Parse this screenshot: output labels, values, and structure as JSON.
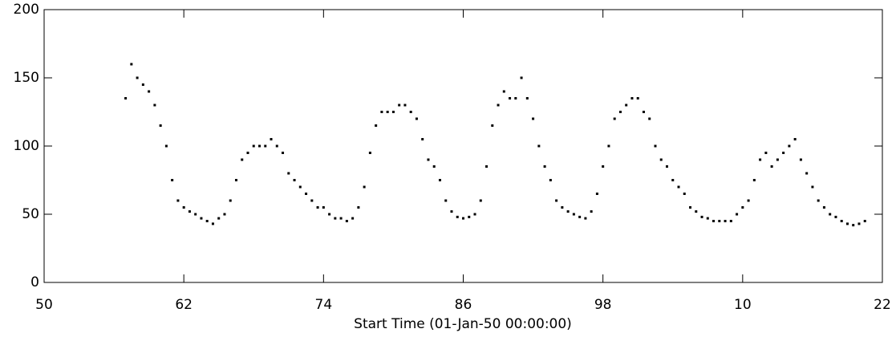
{
  "chart_data": {
    "type": "scatter",
    "x_label": "Start Time (01-Jan-50 00:00:00)",
    "xlim": [
      1950,
      2022
    ],
    "ylim": [
      0,
      200
    ],
    "xticks": [
      {
        "value": 1950,
        "label": "50"
      },
      {
        "value": 1962,
        "label": "62"
      },
      {
        "value": 1974,
        "label": "74"
      },
      {
        "value": 1986,
        "label": "86"
      },
      {
        "value": 1998,
        "label": "98"
      },
      {
        "value": 2010,
        "label": "10"
      },
      {
        "value": 2022,
        "label": "22"
      }
    ],
    "yticks": [
      0,
      50,
      100,
      150,
      200
    ],
    "color": "#000000",
    "x": [
      1957,
      1957.5,
      1958,
      1958.5,
      1959,
      1959.5,
      1960,
      1960.5,
      1961,
      1961.5,
      1962,
      1962.5,
      1963,
      1963.5,
      1964,
      1964.5,
      1965,
      1965.5,
      1966,
      1966.5,
      1967,
      1967.5,
      1968,
      1968.5,
      1969,
      1969.5,
      1970,
      1970.5,
      1971,
      1971.5,
      1972,
      1972.5,
      1973,
      1973.5,
      1974,
      1974.5,
      1975,
      1975.5,
      1976,
      1976.5,
      1977,
      1977.5,
      1978,
      1978.5,
      1979,
      1979.5,
      1980,
      1980.5,
      1981,
      1981.5,
      1982,
      1982.5,
      1983,
      1983.5,
      1984,
      1984.5,
      1985,
      1985.5,
      1986,
      1986.5,
      1987,
      1987.5,
      1988,
      1988.5,
      1989,
      1989.5,
      1990,
      1990.5,
      1991,
      1991.5,
      1992,
      1992.5,
      1993,
      1993.5,
      1994,
      1994.5,
      1995,
      1995.5,
      1996,
      1996.5,
      1997,
      1997.5,
      1998,
      1998.5,
      1999,
      1999.5,
      2000,
      2000.5,
      2001,
      2001.5,
      2002,
      2002.5,
      2003,
      2003.5,
      2004,
      2004.5,
      2005,
      2005.5,
      2006,
      2006.5,
      2007,
      2007.5,
      2008,
      2008.5,
      2009,
      2009.5,
      2010,
      2010.5,
      2011,
      2011.5,
      2012,
      2012.5,
      2013,
      2013.5,
      2014,
      2014.5,
      2015,
      2015.5,
      2016,
      2016.5,
      2017,
      2017.5,
      2018,
      2018.5,
      2019,
      2019.5,
      2020,
      2020.5
    ],
    "values": [
      135,
      160,
      150,
      145,
      140,
      130,
      115,
      100,
      75,
      60,
      55,
      52,
      50,
      47,
      45,
      43,
      47,
      50,
      60,
      75,
      90,
      95,
      100,
      100,
      100,
      105,
      100,
      95,
      80,
      75,
      70,
      65,
      60,
      55,
      55,
      50,
      47,
      47,
      45,
      47,
      55,
      70,
      95,
      115,
      125,
      125,
      125,
      130,
      130,
      125,
      120,
      105,
      90,
      85,
      75,
      60,
      52,
      48,
      47,
      48,
      50,
      60,
      85,
      115,
      130,
      140,
      135,
      135,
      150,
      135,
      120,
      100,
      85,
      75,
      60,
      55,
      52,
      50,
      48,
      47,
      52,
      65,
      85,
      100,
      120,
      125,
      130,
      135,
      135,
      125,
      120,
      100,
      90,
      85,
      75,
      70,
      65,
      55,
      52,
      48,
      47,
      45,
      45,
      45,
      45,
      50,
      55,
      60,
      75,
      90,
      95,
      85,
      90,
      95,
      100,
      105,
      90,
      80,
      70,
      60,
      55,
      50,
      48,
      45,
      43,
      42,
      43,
      45
    ]
  }
}
